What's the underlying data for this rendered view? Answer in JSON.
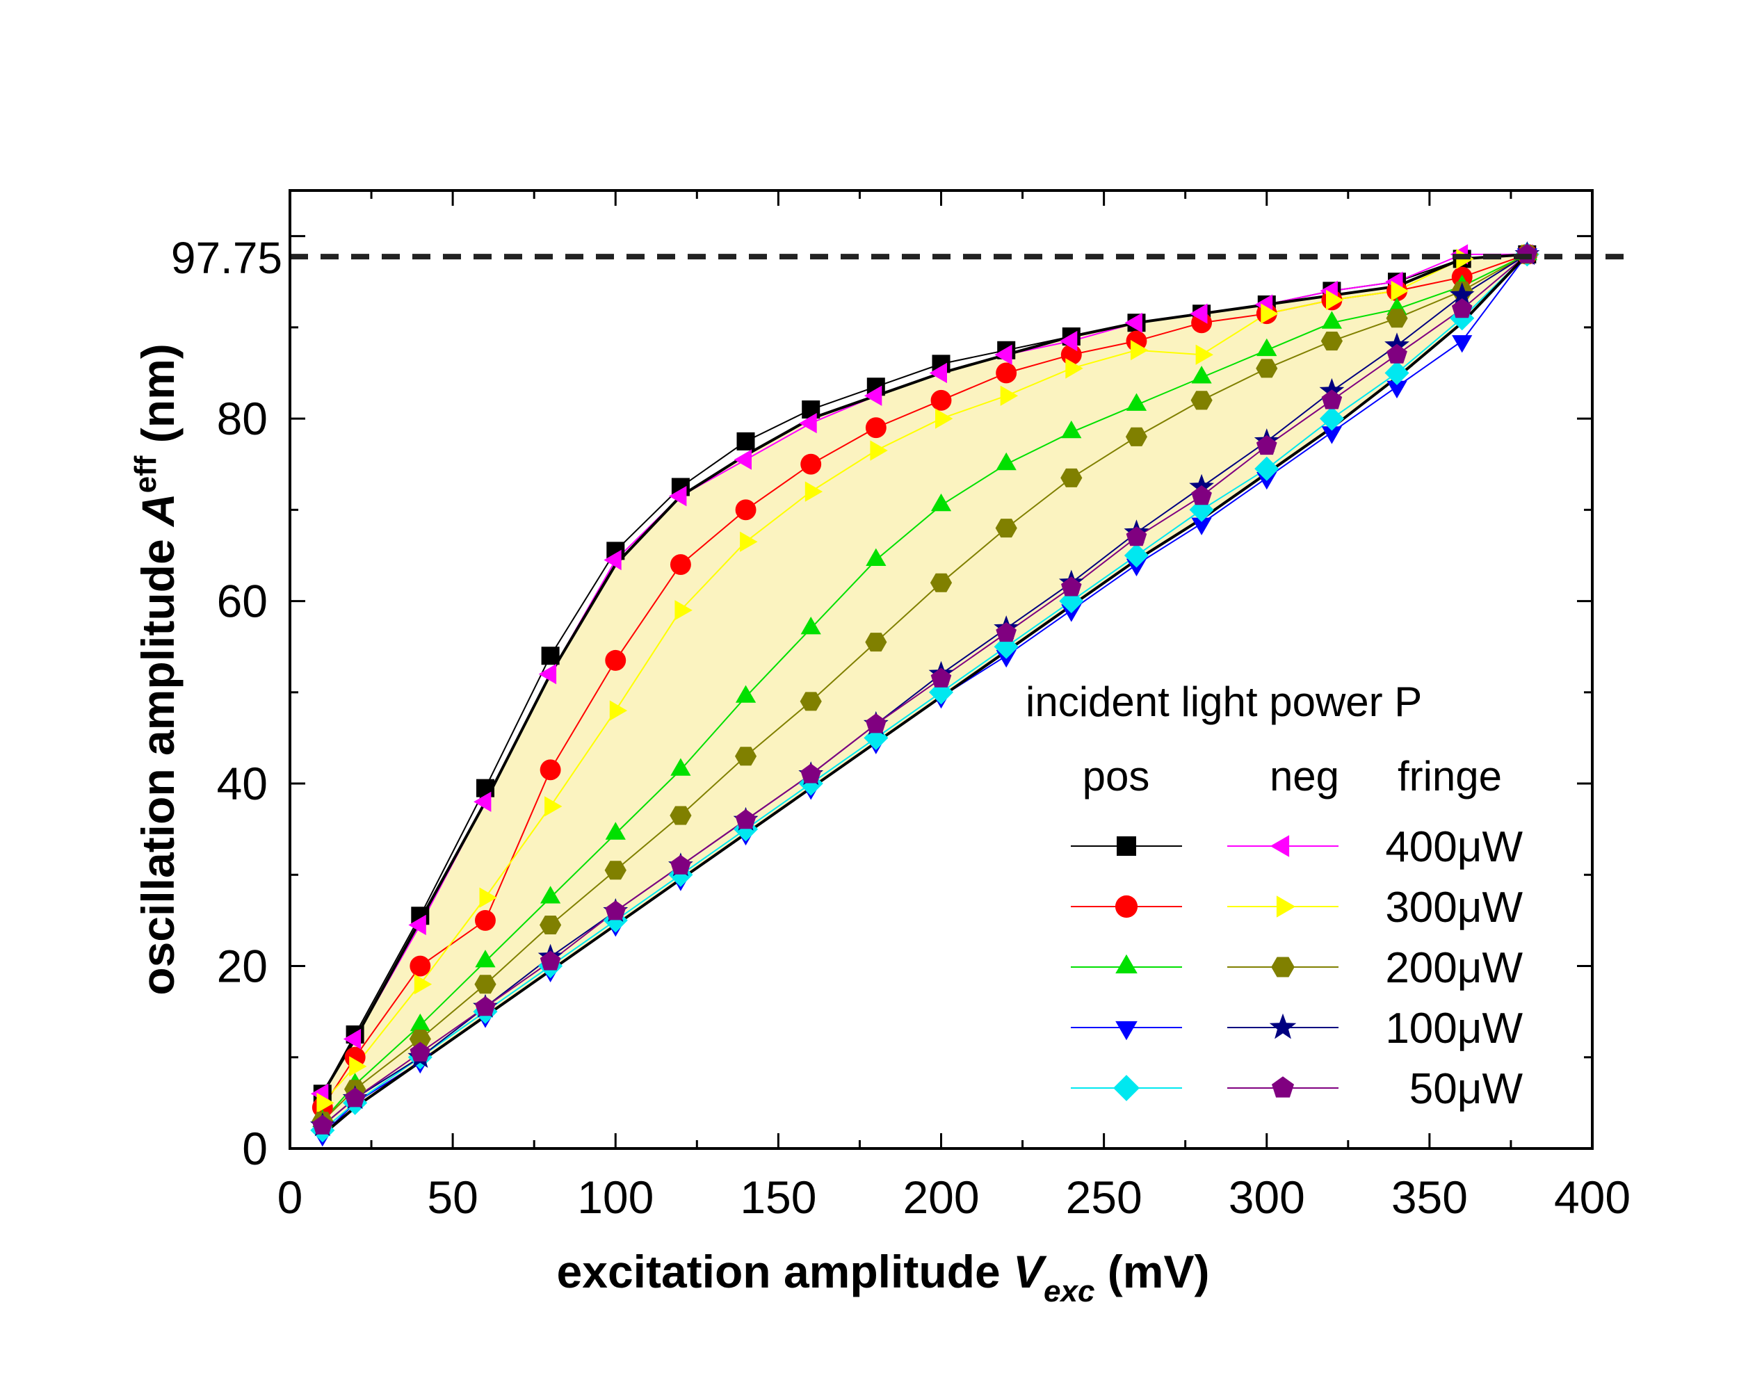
{
  "chart_data": {
    "type": "line",
    "xlabel": {
      "main": "excitation amplitude",
      "var": "V",
      "sub": "exc",
      "unit": "(mV)"
    },
    "ylabel": {
      "main": "oscillation amplitude",
      "var": "A",
      "sup": "eff",
      "unit": "(nm)"
    },
    "xlim": [
      0,
      400
    ],
    "ylim": [
      0,
      105
    ],
    "x_ticks": [
      0,
      50,
      100,
      150,
      200,
      250,
      300,
      350,
      400
    ],
    "y_ticks": [
      0,
      20,
      40,
      60,
      80
    ],
    "reference_line": {
      "y": 97.75,
      "label": "97.75",
      "style": "dashed"
    },
    "fill_color": "#fbf3c0",
    "legend": {
      "title": "incident light power P",
      "column_headers": [
        "pos",
        "neg",
        "fringe"
      ],
      "position": "lower-right"
    },
    "x": [
      10,
      20,
      40,
      60,
      80,
      100,
      120,
      140,
      160,
      180,
      200,
      220,
      240,
      260,
      280,
      300,
      320,
      340,
      360,
      380
    ],
    "series": [
      {
        "name": "pos 400μW",
        "group": "pos",
        "power": "400μW",
        "color": "#000000",
        "marker": "square",
        "values": [
          6,
          12.5,
          25.5,
          39.5,
          54,
          65.5,
          72.5,
          77.5,
          81,
          83.5,
          86,
          87.5,
          89,
          90.5,
          91.5,
          92.5,
          94,
          95,
          97.5,
          98
        ]
      },
      {
        "name": "pos 300μW",
        "group": "pos",
        "power": "300μW",
        "color": "#ff0000",
        "marker": "circle",
        "values": [
          4.5,
          10,
          20,
          25,
          41.5,
          53.5,
          64,
          70,
          75,
          79,
          82,
          85,
          87,
          88.5,
          90.5,
          91.5,
          93,
          94,
          95.5,
          98
        ]
      },
      {
        "name": "pos 200μW",
        "group": "pos",
        "power": "200μW",
        "color": "#00e000",
        "marker": "triangle-up",
        "values": [
          3,
          7,
          13.5,
          20.5,
          27.5,
          34.5,
          41.5,
          49.5,
          57,
          64.5,
          70.5,
          75,
          78.5,
          81.5,
          84.5,
          87.5,
          90.5,
          92,
          94.5,
          98
        ]
      },
      {
        "name": "pos 100μW",
        "group": "pos",
        "power": "100μW",
        "color": "#0000ff",
        "marker": "triangle-down",
        "values": [
          1.5,
          5,
          9.5,
          14.5,
          19.5,
          24.5,
          29.5,
          34.5,
          39.5,
          44.5,
          49.5,
          54,
          59,
          64,
          68.5,
          73.5,
          78.5,
          83.5,
          88.5,
          98
        ]
      },
      {
        "name": "pos 50μW",
        "group": "pos",
        "power": "50μW",
        "color": "#00e8f0",
        "marker": "diamond",
        "values": [
          2,
          5,
          10,
          15,
          20,
          25,
          30,
          35,
          40,
          45,
          50,
          55,
          60,
          65,
          70,
          74.5,
          80,
          85,
          91,
          98
        ]
      },
      {
        "name": "neg 400μW",
        "group": "neg",
        "power": "400μW",
        "color": "#ff00ff",
        "marker": "triangle-left",
        "values": [
          6,
          12,
          24.5,
          38,
          52,
          64.5,
          71.5,
          75.5,
          79.5,
          82.5,
          85,
          87,
          88.5,
          90.5,
          91.5,
          92.5,
          94,
          95,
          98,
          98
        ]
      },
      {
        "name": "neg 300μW",
        "group": "neg",
        "power": "300μW",
        "color": "#ffff00",
        "marker": "triangle-right",
        "values": [
          5,
          9,
          18,
          27.5,
          37.5,
          48,
          59,
          66.5,
          72,
          76.5,
          80,
          82.5,
          85.5,
          87.5,
          87,
          91.5,
          93,
          94,
          97.5,
          98
        ]
      },
      {
        "name": "neg 200μW",
        "group": "neg",
        "power": "200μW",
        "color": "#808000",
        "marker": "hexagon",
        "values": [
          3,
          6.5,
          12,
          18,
          24.5,
          30.5,
          36.5,
          43,
          49,
          55.5,
          62,
          68,
          73.5,
          78,
          82,
          85.5,
          88.5,
          91,
          94,
          98
        ]
      },
      {
        "name": "neg 100μW",
        "group": "neg",
        "power": "100μW",
        "color": "#000080",
        "marker": "star",
        "values": [
          2.5,
          5.5,
          10,
          15.5,
          21,
          26,
          31,
          36,
          41,
          46.5,
          52,
          57,
          62,
          67.5,
          72.5,
          77.5,
          83,
          88,
          93.5,
          98
        ]
      },
      {
        "name": "neg 50μW",
        "group": "neg",
        "power": "50μW",
        "color": "#800080",
        "marker": "pentagon",
        "values": [
          2.5,
          5.5,
          10.5,
          15.5,
          20.5,
          26,
          31,
          36,
          41,
          46.5,
          51.5,
          56.5,
          61.5,
          67,
          71.5,
          77,
          82,
          87,
          92,
          98
        ]
      }
    ],
    "fringe": {
      "upper": [
        6,
        12,
        25,
        38,
        52,
        64,
        71.5,
        76,
        80,
        82.5,
        85,
        87,
        89,
        90.5,
        91.5,
        92.5,
        93.5,
        94.5,
        97.5,
        98
      ],
      "lower": [
        1.5,
        4.5,
        9.5,
        14.5,
        19.5,
        24.5,
        29.5,
        34.5,
        39.5,
        44.5,
        49.5,
        54.5,
        59.5,
        64.5,
        69,
        74,
        79,
        84.5,
        90.5,
        98
      ]
    }
  }
}
